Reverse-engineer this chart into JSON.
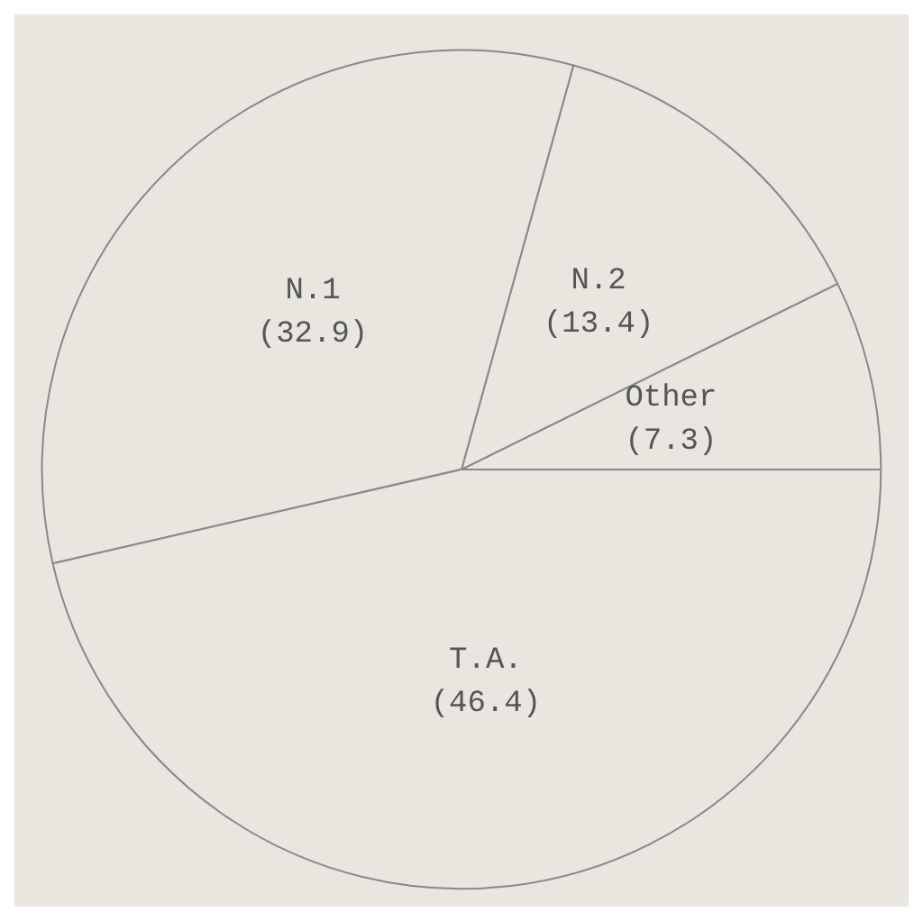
{
  "chart_data": {
    "type": "pie",
    "categories": [
      "Other",
      "N.2",
      "N.1",
      "T.A."
    ],
    "values": [
      7.3,
      13.4,
      32.9,
      46.4
    ],
    "value_labels": [
      "(7.3)",
      "(13.4)",
      "(32.9)",
      "(46.4)"
    ],
    "colors": [
      "#e8e6df",
      "#e8e6df",
      "#e8e6df",
      "#e8e6df"
    ]
  }
}
